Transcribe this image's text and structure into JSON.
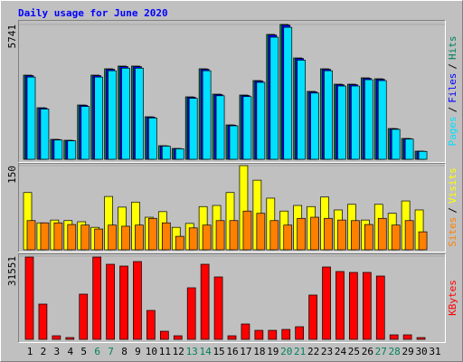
{
  "chart_data": {
    "type": "bar",
    "title": "Daily usage for June 2020",
    "categories": [
      "1",
      "2",
      "3",
      "4",
      "5",
      "6",
      "7",
      "8",
      "9",
      "10",
      "11",
      "12",
      "13",
      "14",
      "15",
      "16",
      "17",
      "18",
      "19",
      "20",
      "21",
      "22",
      "23",
      "24",
      "25",
      "26",
      "27",
      "28",
      "29",
      "30",
      "31"
    ],
    "category_colors": [
      "#000000",
      "#000000",
      "#000000",
      "#000000",
      "#000000",
      "#00805c",
      "#00805c",
      "#000000",
      "#000000",
      "#000000",
      "#000000",
      "#000000",
      "#00805c",
      "#00805c",
      "#000000",
      "#000000",
      "#000000",
      "#000000",
      "#000000",
      "#00805c",
      "#00805c",
      "#000000",
      "#000000",
      "#000000",
      "#000000",
      "#000000",
      "#00805c",
      "#00805c",
      "#000000",
      "#000000",
      "#000000"
    ],
    "legend_separator": "/",
    "panels": [
      {
        "ylim": [
          0,
          5741
        ],
        "yticks": [
          5741
        ],
        "series": [
          {
            "name": "Pages",
            "color": "#00e0ff",
            "values": [
              3500,
              2140,
              820,
              785,
              2250,
              3500,
              3770,
              3880,
              3880,
              1760,
              560,
              445,
              2595,
              3770,
              2705,
              1425,
              2670,
              3275,
              5200,
              5620,
              4220,
              2820,
              3770,
              3120,
              3120,
              3390,
              3350,
              1275,
              860,
              335,
              0
            ]
          },
          {
            "name": "Files",
            "color": "#0000ff",
            "values": [
              3560,
              2180,
              840,
              800,
              2295,
              3560,
              3830,
              3945,
              3945,
              1795,
              570,
              455,
              2640,
              3830,
              2755,
              1450,
              2715,
              3330,
              5290,
              5710,
              4290,
              2870,
              3830,
              3175,
              3175,
              3445,
              3405,
              1300,
              878,
              342,
              0
            ]
          },
          {
            "name": "Hits",
            "color": "#00805c",
            "values": [
              3583,
              2196,
              848,
              809,
              2312,
              3583,
              3853,
              3969,
              3969,
              1811,
              578,
              462,
              2659,
              3853,
              2774,
              1464,
              2736,
              3352,
              5317,
              5741,
              4315,
              2890,
              3853,
              3198,
              3198,
              3468,
              3429,
              1310,
              886,
              347,
              0
            ]
          }
        ]
      },
      {
        "ylim": [
          0,
          150
        ],
        "yticks": [
          150
        ],
        "series": [
          {
            "name": "Sites",
            "color": "#ff8000",
            "values": [
              52,
              48,
              48,
              45,
              44,
              37,
              44,
              42,
              44,
              56,
              48,
              24,
              39,
              44,
              52,
              52,
              69,
              65,
              52,
              44,
              56,
              58,
              56,
              53,
              52,
              45,
              56,
              44,
              52,
              32,
              0
            ]
          },
          {
            "name": "Visits",
            "color": "#ffff00",
            "values": [
              102,
              48,
              53,
              52,
              50,
              40,
              95,
              76,
              85,
              58,
              68,
              40,
              47,
              77,
              79,
              102,
              150,
              124,
              92,
              69,
              79,
              77,
              94,
              71,
              81,
              53,
              81,
              65,
              87,
              71,
              0
            ]
          }
        ]
      },
      {
        "ylim": [
          0,
          31551
        ],
        "yticks": [
          31551
        ],
        "series": [
          {
            "name": "KBytes",
            "color": "#ff0000",
            "values": [
              31200,
              13375,
              1372,
              686,
              17147,
              31200,
              28464,
              27778,
              29493,
              10974,
              3087,
              1372,
              19548,
              28464,
              23663,
              1372,
              5830,
              3430,
              3430,
              3772,
              4801,
              16804,
              27435,
              25721,
              25378,
              25378,
              24006,
              1715,
              1715,
              686,
              0
            ]
          }
        ]
      }
    ]
  }
}
